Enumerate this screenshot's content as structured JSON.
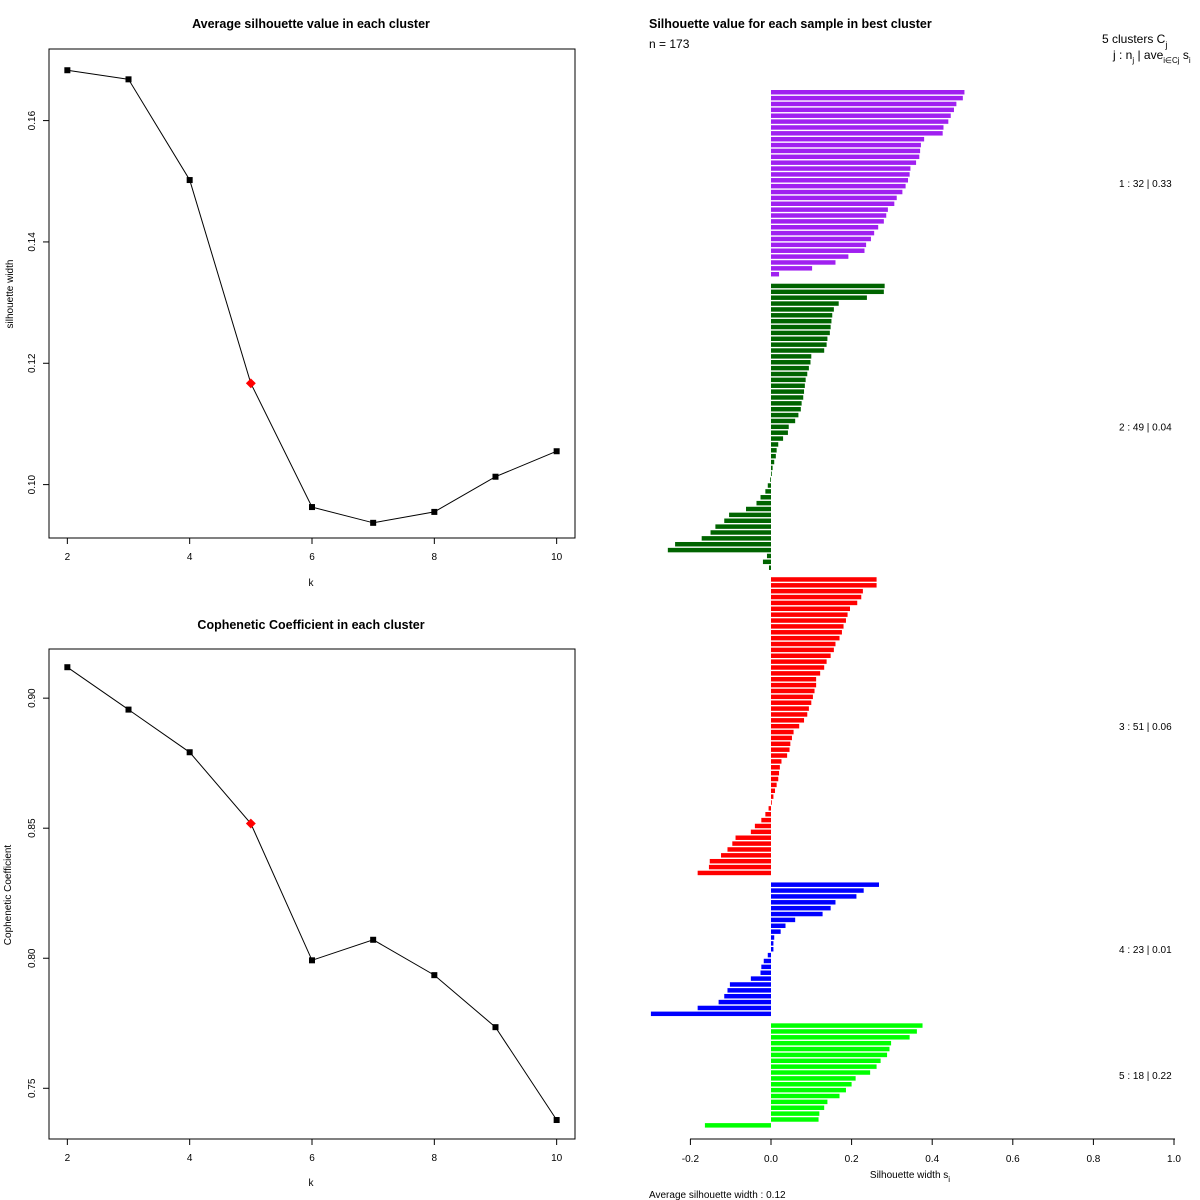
{
  "chart_data": [
    {
      "type": "line",
      "title": "Average silhouette value in each cluster",
      "xlabel": "k",
      "ylabel": "silhouette width",
      "x": [
        2,
        3,
        4,
        5,
        6,
        7,
        8,
        9,
        10
      ],
      "y": [
        0.1683,
        0.1668,
        0.1502,
        0.1167,
        0.0963,
        0.0937,
        0.0955,
        0.1013,
        0.1055
      ],
      "highlight_index": 3,
      "xlim": [
        1.7,
        10.3
      ],
      "ylim": [
        0.0912,
        0.1718
      ],
      "xticks": [
        "2",
        "4",
        "6",
        "8",
        "10"
      ],
      "yticks": [
        "0.10",
        "0.12",
        "0.14",
        "0.16"
      ]
    },
    {
      "type": "line",
      "title": "Cophenetic Coefficient in each cluster",
      "xlabel": "k",
      "ylabel": "Cophenetic Coefficient",
      "x": [
        2,
        3,
        4,
        5,
        6,
        7,
        8,
        9,
        10
      ],
      "y": [
        0.9119,
        0.8956,
        0.8792,
        0.8518,
        0.7992,
        0.8071,
        0.7935,
        0.7735,
        0.7378
      ],
      "highlight_index": 3,
      "xlim": [
        1.7,
        10.3
      ],
      "ylim": [
        0.7305,
        0.9189
      ],
      "xticks": [
        "2",
        "4",
        "6",
        "8",
        "10"
      ],
      "yticks": [
        "0.75",
        "0.80",
        "0.85",
        "0.90"
      ]
    },
    {
      "type": "bar",
      "orientation": "horizontal",
      "title": "Silhouette value for each sample in best cluster",
      "n_label": "n = 173",
      "header_line1": "5  clusters  C",
      "header_sub1": "j",
      "header_line2": "j :  n",
      "header_sub2": "j",
      "header_line2b": " | ave",
      "header_sub3": "i∈Cj",
      "header_line2c": " s",
      "header_sub4": "i",
      "xlabel": "Silhouette width s",
      "xlabel_sub": "i",
      "xlim": [
        -0.2,
        1.0
      ],
      "xticks": [
        "-0.2",
        "0.0",
        "0.2",
        "0.4",
        "0.6",
        "0.8",
        "1.0"
      ],
      "footer": "Average silhouette width :  0.12",
      "clusters": [
        {
          "label": "1 :   32  |  0.33",
          "color": "#a020f0",
          "values": [
            0.48,
            0.476,
            0.46,
            0.454,
            0.446,
            0.44,
            0.428,
            0.426,
            0.38,
            0.372,
            0.37,
            0.368,
            0.36,
            0.346,
            0.344,
            0.34,
            0.334,
            0.326,
            0.312,
            0.306,
            0.29,
            0.286,
            0.28,
            0.266,
            0.256,
            0.248,
            0.236,
            0.232,
            0.192,
            0.16,
            0.102,
            0.02
          ]
        },
        {
          "label": "2 :   49  |  0.04",
          "color": "#006400",
          "values": [
            0.282,
            0.28,
            0.238,
            0.168,
            0.156,
            0.152,
            0.15,
            0.148,
            0.146,
            0.14,
            0.138,
            0.132,
            0.1,
            0.098,
            0.094,
            0.09,
            0.086,
            0.084,
            0.082,
            0.08,
            0.076,
            0.074,
            0.068,
            0.06,
            0.044,
            0.042,
            0.03,
            0.018,
            0.014,
            0.012,
            0.008,
            0.004,
            0.002,
            -0.002,
            -0.008,
            -0.014,
            -0.026,
            -0.036,
            -0.062,
            -0.104,
            -0.116,
            -0.138,
            -0.15,
            -0.172,
            -0.238,
            -0.256,
            -0.01,
            -0.02,
            -0.005
          ]
        },
        {
          "label": "3 :   51  |  0.06",
          "color": "#ff0000",
          "values": [
            0.262,
            0.262,
            0.228,
            0.224,
            0.214,
            0.196,
            0.19,
            0.186,
            0.18,
            0.176,
            0.17,
            0.16,
            0.156,
            0.148,
            0.138,
            0.132,
            0.122,
            0.112,
            0.112,
            0.108,
            0.104,
            0.1,
            0.094,
            0.09,
            0.082,
            0.07,
            0.056,
            0.052,
            0.048,
            0.046,
            0.04,
            0.026,
            0.022,
            0.02,
            0.018,
            0.014,
            0.01,
            0.006,
            0.002,
            -0.006,
            -0.014,
            -0.024,
            -0.04,
            -0.05,
            -0.088,
            -0.096,
            -0.108,
            -0.124,
            -0.152,
            -0.154,
            -0.182
          ]
        },
        {
          "label": "4 :   23  |  0.01",
          "color": "#0000ff",
          "values": [
            0.268,
            0.23,
            0.212,
            0.16,
            0.148,
            0.128,
            0.06,
            0.036,
            0.024,
            0.008,
            0.006,
            0.006,
            -0.008,
            -0.018,
            -0.024,
            -0.026,
            -0.05,
            -0.102,
            -0.108,
            -0.116,
            -0.13,
            -0.182,
            -0.298
          ]
        },
        {
          "label": "5 :   18  |  0.22",
          "color": "#00ff00",
          "values": [
            0.376,
            0.362,
            0.344,
            0.298,
            0.294,
            0.288,
            0.272,
            0.262,
            0.246,
            0.21,
            0.2,
            0.186,
            0.17,
            0.14,
            0.132,
            0.12,
            0.118,
            -0.164
          ]
        }
      ]
    }
  ]
}
